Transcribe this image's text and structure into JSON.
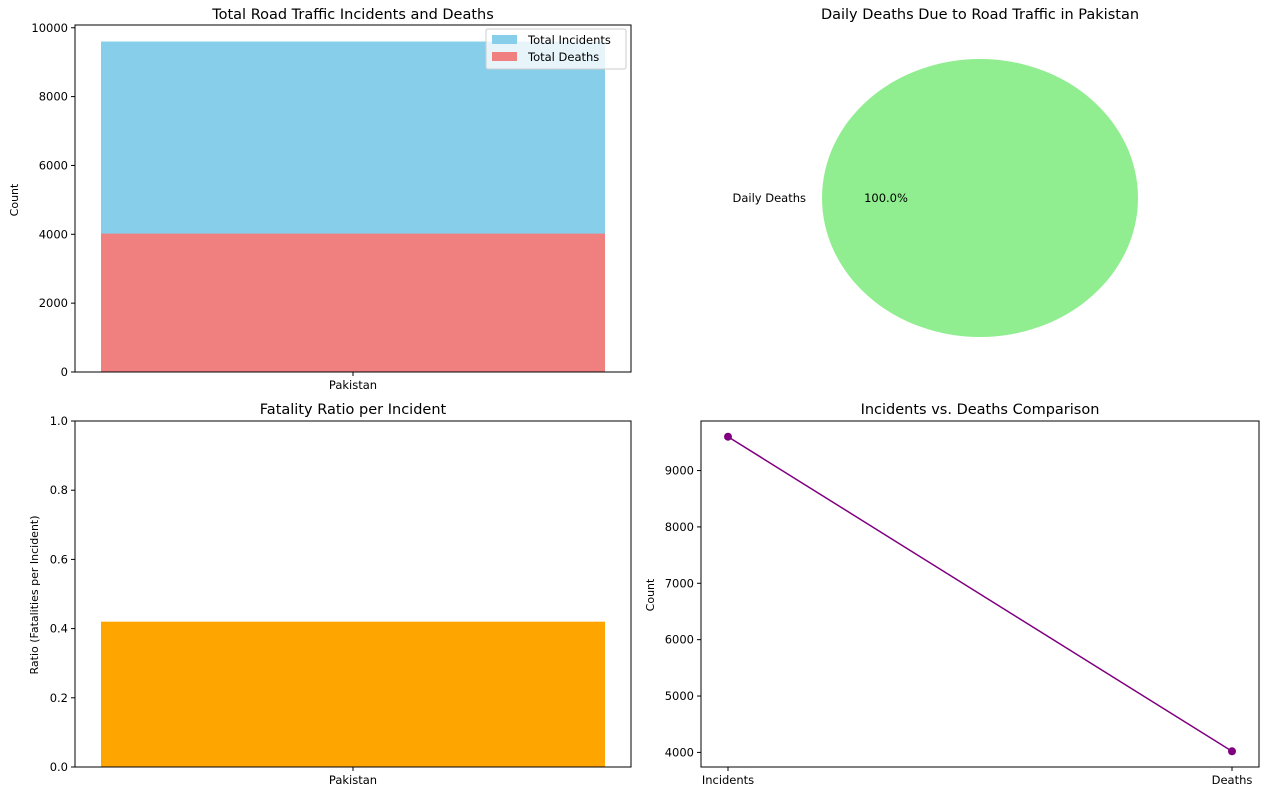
{
  "chart_data": [
    {
      "type": "bar",
      "title": "Total Road Traffic Incidents and Deaths",
      "categories": [
        "Pakistan"
      ],
      "series": [
        {
          "name": "Total Incidents",
          "values": [
            9600
          ],
          "color": "#87ceeb"
        },
        {
          "name": "Total Deaths",
          "values": [
            4020
          ],
          "color": "#f08080"
        }
      ],
      "xlabel": "",
      "ylabel": "Count",
      "ylim": [
        0,
        10080
      ],
      "yticks": [
        0,
        2000,
        4000,
        6000,
        8000,
        10000
      ],
      "ytick_labels": [
        "0",
        "2000",
        "4000",
        "6000",
        "8000",
        "10000"
      ],
      "legend": "top-right",
      "grid": false
    },
    {
      "type": "pie",
      "title": "Daily Deaths Due to Road Traffic in Pakistan",
      "labels": [
        "Daily Deaths"
      ],
      "values": [
        100.0
      ],
      "pct_labels": [
        "100.0%"
      ],
      "colors": [
        "#90ee90"
      ]
    },
    {
      "type": "bar",
      "title": "Fatality Ratio per Incident",
      "categories": [
        "Pakistan"
      ],
      "values": [
        0.42
      ],
      "color": "#ffa500",
      "xlabel": "",
      "ylabel": "Ratio (Fatalities per Incident)",
      "ylim": [
        0,
        1.0
      ],
      "yticks": [
        0,
        0.2,
        0.4,
        0.6,
        0.8,
        1.0
      ],
      "ytick_labels": [
        "0.0",
        "0.2",
        "0.4",
        "0.6",
        "0.8",
        "1.0"
      ],
      "grid": false
    },
    {
      "type": "line",
      "title": "Incidents vs. Deaths Comparison",
      "x": [
        "Incidents",
        "Deaths"
      ],
      "y": [
        9600,
        4020
      ],
      "color": "#800080",
      "marker": "circle",
      "xlabel": "",
      "ylabel": "Count",
      "ylim": [
        3741,
        9879
      ],
      "yticks": [
        4000,
        5000,
        6000,
        7000,
        8000,
        9000
      ],
      "ytick_labels": [
        "4000",
        "5000",
        "6000",
        "7000",
        "8000",
        "9000"
      ],
      "grid": false
    }
  ]
}
